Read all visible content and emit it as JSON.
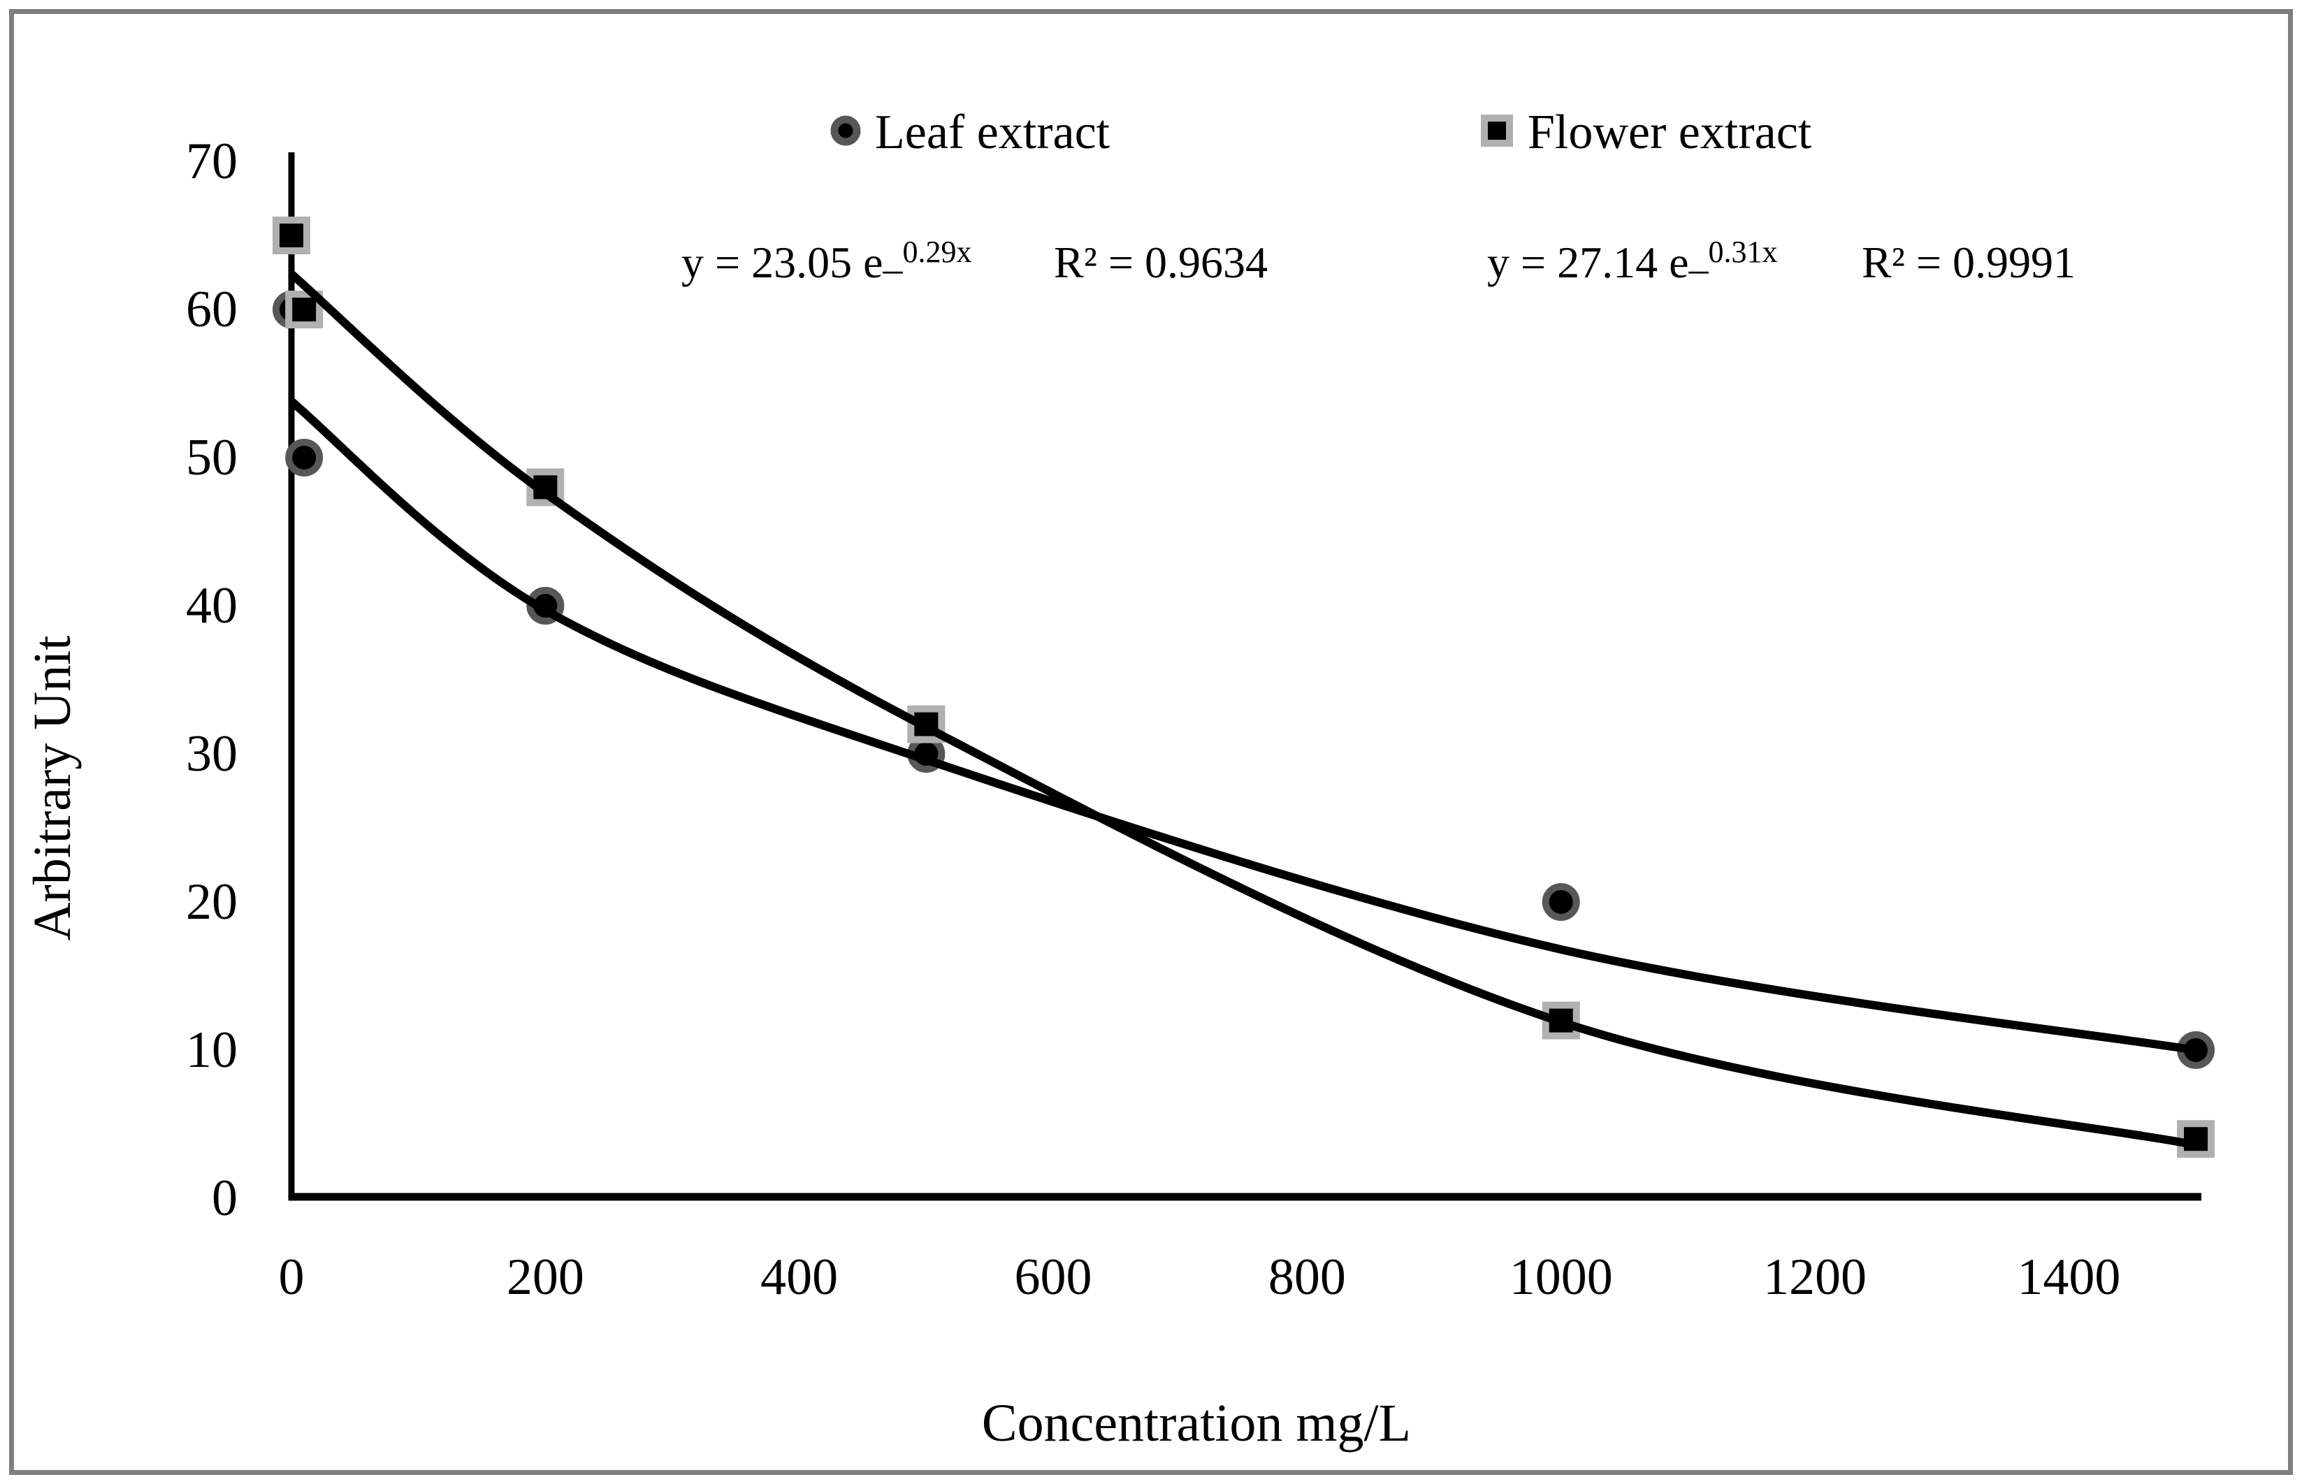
{
  "background": "#ffffff",
  "frame_color": "#7f7f7f",
  "chart_data": {
    "type": "scatter",
    "title": "",
    "xlabel": "Concentration mg/L",
    "ylabel": "Arbitrary Unit",
    "x_ticks": [
      0,
      200,
      400,
      600,
      800,
      1000,
      1200,
      1400
    ],
    "y_ticks": [
      0,
      10,
      20,
      30,
      40,
      50,
      60,
      70
    ],
    "xlim": [
      0,
      1500
    ],
    "ylim": [
      0,
      70
    ],
    "grid": false,
    "legend_position": "top-center",
    "axis_color": "#000000",
    "trendline_color": "#000000",
    "series": [
      {
        "name": "Leaf extract",
        "marker": "circle",
        "marker_fill": "#000000",
        "marker_edge": "#575757",
        "points": [
          [
            0,
            60
          ],
          [
            10,
            50
          ],
          [
            200,
            40
          ],
          [
            500,
            30
          ],
          [
            1000,
            20
          ],
          [
            1500,
            10
          ]
        ],
        "trendline": {
          "equation_base": "y = 23.05 e",
          "equation_minus": "–",
          "equation_exponent": "0.29x",
          "r_squared": "R² = 0.9634",
          "curve_points": [
            [
              0,
              53.8
            ],
            [
              200,
              39.7
            ],
            [
              500,
              29.6
            ],
            [
              1000,
              16.8
            ],
            [
              1500,
              10.0
            ]
          ]
        }
      },
      {
        "name": "Flower extract",
        "marker": "square",
        "marker_fill": "#000000",
        "marker_edge": "#b0b0b0",
        "points": [
          [
            0,
            65
          ],
          [
            10,
            60
          ],
          [
            200,
            48
          ],
          [
            500,
            32
          ],
          [
            1000,
            12
          ],
          [
            1500,
            4
          ]
        ],
        "trendline": {
          "equation_base": "y = 27.14 e",
          "equation_minus": "–",
          "equation_exponent": "0.31x",
          "r_squared": "R² = 0.9991",
          "curve_points": [
            [
              0,
              62.4
            ],
            [
              200,
              47.6
            ],
            [
              500,
              31.8
            ],
            [
              1000,
              11.9
            ],
            [
              1500,
              3.6
            ]
          ]
        }
      }
    ]
  }
}
